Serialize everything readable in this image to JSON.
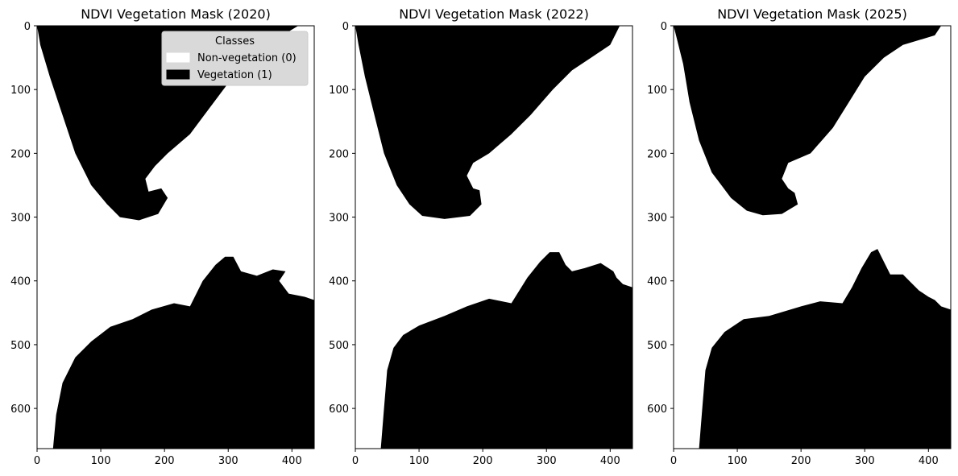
{
  "chart_data": [
    {
      "type": "heatmap",
      "title": "NDVI Vegetation Mask (2020)",
      "xlim": [
        0,
        435
      ],
      "ylim": [
        663,
        0
      ],
      "x_ticks": [
        0,
        100,
        200,
        300,
        400
      ],
      "y_ticks": [
        0,
        100,
        200,
        300,
        400,
        500,
        600
      ],
      "classes": [
        {
          "label": "Non-vegetation (0)",
          "value": 0,
          "color": "#ffffff"
        },
        {
          "label": "Vegetation (1)",
          "value": 1,
          "color": "#000000"
        }
      ],
      "legend": {
        "title": "Classes",
        "placement": "top-right"
      },
      "vegetation_regions": [
        [
          [
            0,
            0
          ],
          [
            410,
            0
          ],
          [
            385,
            15
          ],
          [
            340,
            50
          ],
          [
            300,
            90
          ],
          [
            270,
            130
          ],
          [
            240,
            170
          ],
          [
            205,
            200
          ],
          [
            185,
            220
          ],
          [
            170,
            240
          ],
          [
            175,
            260
          ],
          [
            195,
            255
          ],
          [
            205,
            270
          ],
          [
            190,
            295
          ],
          [
            160,
            305
          ],
          [
            130,
            300
          ],
          [
            110,
            280
          ],
          [
            85,
            250
          ],
          [
            60,
            200
          ],
          [
            40,
            140
          ],
          [
            20,
            80
          ],
          [
            5,
            30
          ]
        ],
        [
          [
            25,
            663
          ],
          [
            435,
            663
          ],
          [
            435,
            430
          ],
          [
            420,
            425
          ],
          [
            395,
            420
          ],
          [
            380,
            400
          ],
          [
            390,
            385
          ],
          [
            370,
            382
          ],
          [
            345,
            392
          ],
          [
            320,
            385
          ],
          [
            308,
            362
          ],
          [
            295,
            362
          ],
          [
            280,
            375
          ],
          [
            260,
            400
          ],
          [
            240,
            440
          ],
          [
            215,
            435
          ],
          [
            180,
            445
          ],
          [
            150,
            460
          ],
          [
            115,
            472
          ],
          [
            85,
            495
          ],
          [
            60,
            520
          ],
          [
            40,
            560
          ],
          [
            30,
            610
          ]
        ]
      ]
    },
    {
      "type": "heatmap",
      "title": "NDVI Vegetation Mask (2022)",
      "xlim": [
        0,
        435
      ],
      "ylim": [
        663,
        0
      ],
      "x_ticks": [
        0,
        100,
        200,
        300,
        400
      ],
      "y_ticks": [
        0,
        100,
        200,
        300,
        400,
        500,
        600
      ],
      "vegetation_regions": [
        [
          [
            0,
            0
          ],
          [
            415,
            0
          ],
          [
            400,
            30
          ],
          [
            370,
            50
          ],
          [
            340,
            70
          ],
          [
            310,
            100
          ],
          [
            275,
            140
          ],
          [
            245,
            170
          ],
          [
            210,
            200
          ],
          [
            185,
            215
          ],
          [
            175,
            235
          ],
          [
            185,
            255
          ],
          [
            195,
            258
          ],
          [
            198,
            280
          ],
          [
            180,
            298
          ],
          [
            140,
            303
          ],
          [
            105,
            298
          ],
          [
            85,
            280
          ],
          [
            65,
            250
          ],
          [
            45,
            200
          ],
          [
            30,
            140
          ],
          [
            15,
            80
          ],
          [
            5,
            30
          ]
        ],
        [
          [
            40,
            663
          ],
          [
            435,
            663
          ],
          [
            435,
            410
          ],
          [
            420,
            405
          ],
          [
            410,
            395
          ],
          [
            405,
            385
          ],
          [
            385,
            372
          ],
          [
            360,
            380
          ],
          [
            340,
            385
          ],
          [
            330,
            375
          ],
          [
            320,
            355
          ],
          [
            305,
            355
          ],
          [
            290,
            370
          ],
          [
            270,
            395
          ],
          [
            245,
            435
          ],
          [
            210,
            428
          ],
          [
            175,
            440
          ],
          [
            140,
            455
          ],
          [
            100,
            470
          ],
          [
            75,
            485
          ],
          [
            60,
            505
          ],
          [
            50,
            540
          ],
          [
            45,
            600
          ]
        ]
      ]
    },
    {
      "type": "heatmap",
      "title": "NDVI Vegetation Mask (2025)",
      "xlim": [
        0,
        435
      ],
      "ylim": [
        663,
        0
      ],
      "x_ticks": [
        0,
        100,
        200,
        300,
        400
      ],
      "y_ticks": [
        0,
        100,
        200,
        300,
        400,
        500,
        600
      ],
      "vegetation_regions": [
        [
          [
            0,
            0
          ],
          [
            420,
            0
          ],
          [
            410,
            15
          ],
          [
            360,
            30
          ],
          [
            330,
            50
          ],
          [
            300,
            80
          ],
          [
            275,
            120
          ],
          [
            250,
            160
          ],
          [
            215,
            200
          ],
          [
            180,
            215
          ],
          [
            170,
            240
          ],
          [
            180,
            255
          ],
          [
            190,
            262
          ],
          [
            195,
            280
          ],
          [
            170,
            295
          ],
          [
            140,
            297
          ],
          [
            115,
            290
          ],
          [
            90,
            270
          ],
          [
            60,
            230
          ],
          [
            40,
            180
          ],
          [
            25,
            120
          ],
          [
            15,
            60
          ],
          [
            5,
            20
          ]
        ],
        [
          [
            40,
            663
          ],
          [
            435,
            663
          ],
          [
            435,
            445
          ],
          [
            420,
            440
          ],
          [
            410,
            430
          ],
          [
            400,
            425
          ],
          [
            385,
            415
          ],
          [
            370,
            400
          ],
          [
            360,
            390
          ],
          [
            340,
            390
          ],
          [
            330,
            370
          ],
          [
            320,
            350
          ],
          [
            310,
            355
          ],
          [
            295,
            380
          ],
          [
            280,
            410
          ],
          [
            265,
            435
          ],
          [
            230,
            432
          ],
          [
            200,
            440
          ],
          [
            150,
            455
          ],
          [
            110,
            460
          ],
          [
            80,
            480
          ],
          [
            60,
            505
          ],
          [
            50,
            540
          ],
          [
            45,
            600
          ]
        ]
      ]
    }
  ]
}
